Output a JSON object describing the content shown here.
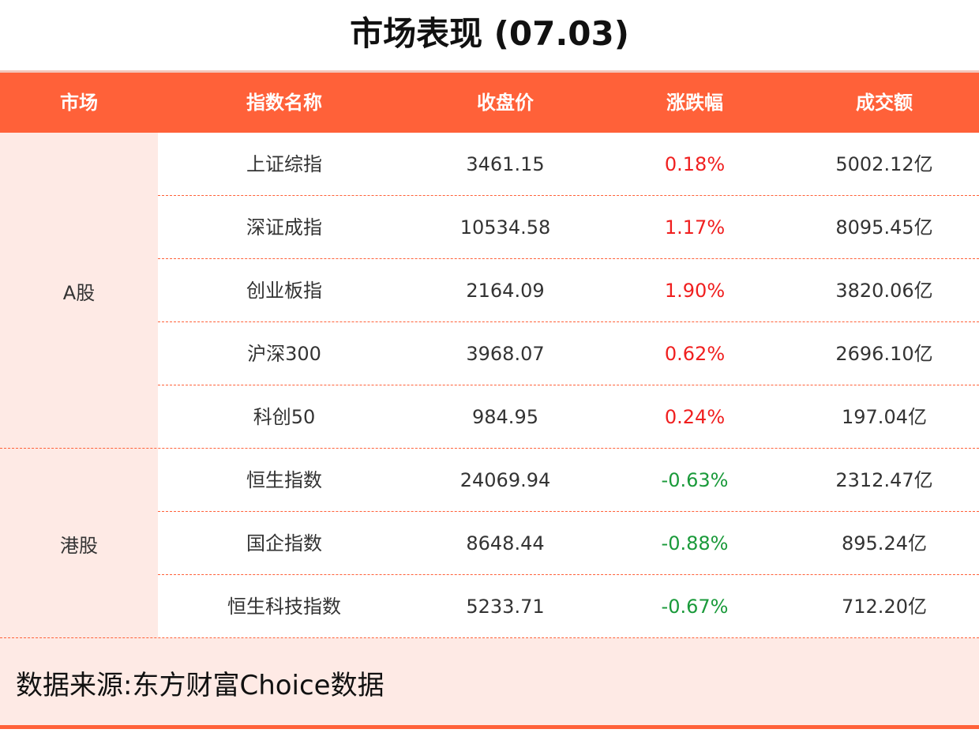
{
  "title": "市场表现 (07.03)",
  "colors": {
    "accent": "#FF6139",
    "market_bg": "#FEEAE5",
    "up": "#F01F1F",
    "down": "#1A9A3A"
  },
  "headers": [
    "市场",
    "指数名称",
    "收盘价",
    "涨跌幅",
    "成交额"
  ],
  "markets": [
    {
      "name": "A股",
      "rows": [
        {
          "index": "上证综指",
          "close": "3461.15",
          "change": "0.18%",
          "volume": "5002.12亿",
          "dir": "up"
        },
        {
          "index": "深证成指",
          "close": "10534.58",
          "change": "1.17%",
          "volume": "8095.45亿",
          "dir": "up"
        },
        {
          "index": "创业板指",
          "close": "2164.09",
          "change": "1.90%",
          "volume": "3820.06亿",
          "dir": "up"
        },
        {
          "index": "沪深300",
          "close": "3968.07",
          "change": "0.62%",
          "volume": "2696.10亿",
          "dir": "up"
        },
        {
          "index": "科创50",
          "close": "984.95",
          "change": "0.24%",
          "volume": "197.04亿",
          "dir": "up"
        }
      ]
    },
    {
      "name": "港股",
      "rows": [
        {
          "index": "恒生指数",
          "close": "24069.94",
          "change": "-0.63%",
          "volume": "2312.47亿",
          "dir": "down"
        },
        {
          "index": "国企指数",
          "close": "8648.44",
          "change": "-0.88%",
          "volume": "895.24亿",
          "dir": "down"
        },
        {
          "index": "恒生科技指数",
          "close": "5233.71",
          "change": "-0.67%",
          "volume": "712.20亿",
          "dir": "down"
        }
      ]
    }
  ],
  "footer": "数据来源:东方财富Choice数据"
}
